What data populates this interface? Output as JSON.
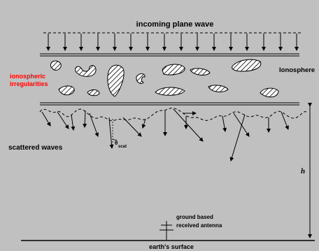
{
  "diagram": {
    "title": "incoming plane wave",
    "layer_label": "Ionosphere",
    "irregularities_label_line1": "ionospheric",
    "irregularities_label_line2": "irregularities",
    "scattered_label": "scattered waves",
    "angle_symbol": "θ",
    "angle_subscript": "scat",
    "height_symbol": "h",
    "antenna_label_line1": "ground based",
    "antenna_label_line2": "received antenna",
    "surface_label": "earth's surface"
  },
  "colors": {
    "background": "#c0c0c0",
    "ink": "#000000",
    "highlight": "#ff0000"
  }
}
